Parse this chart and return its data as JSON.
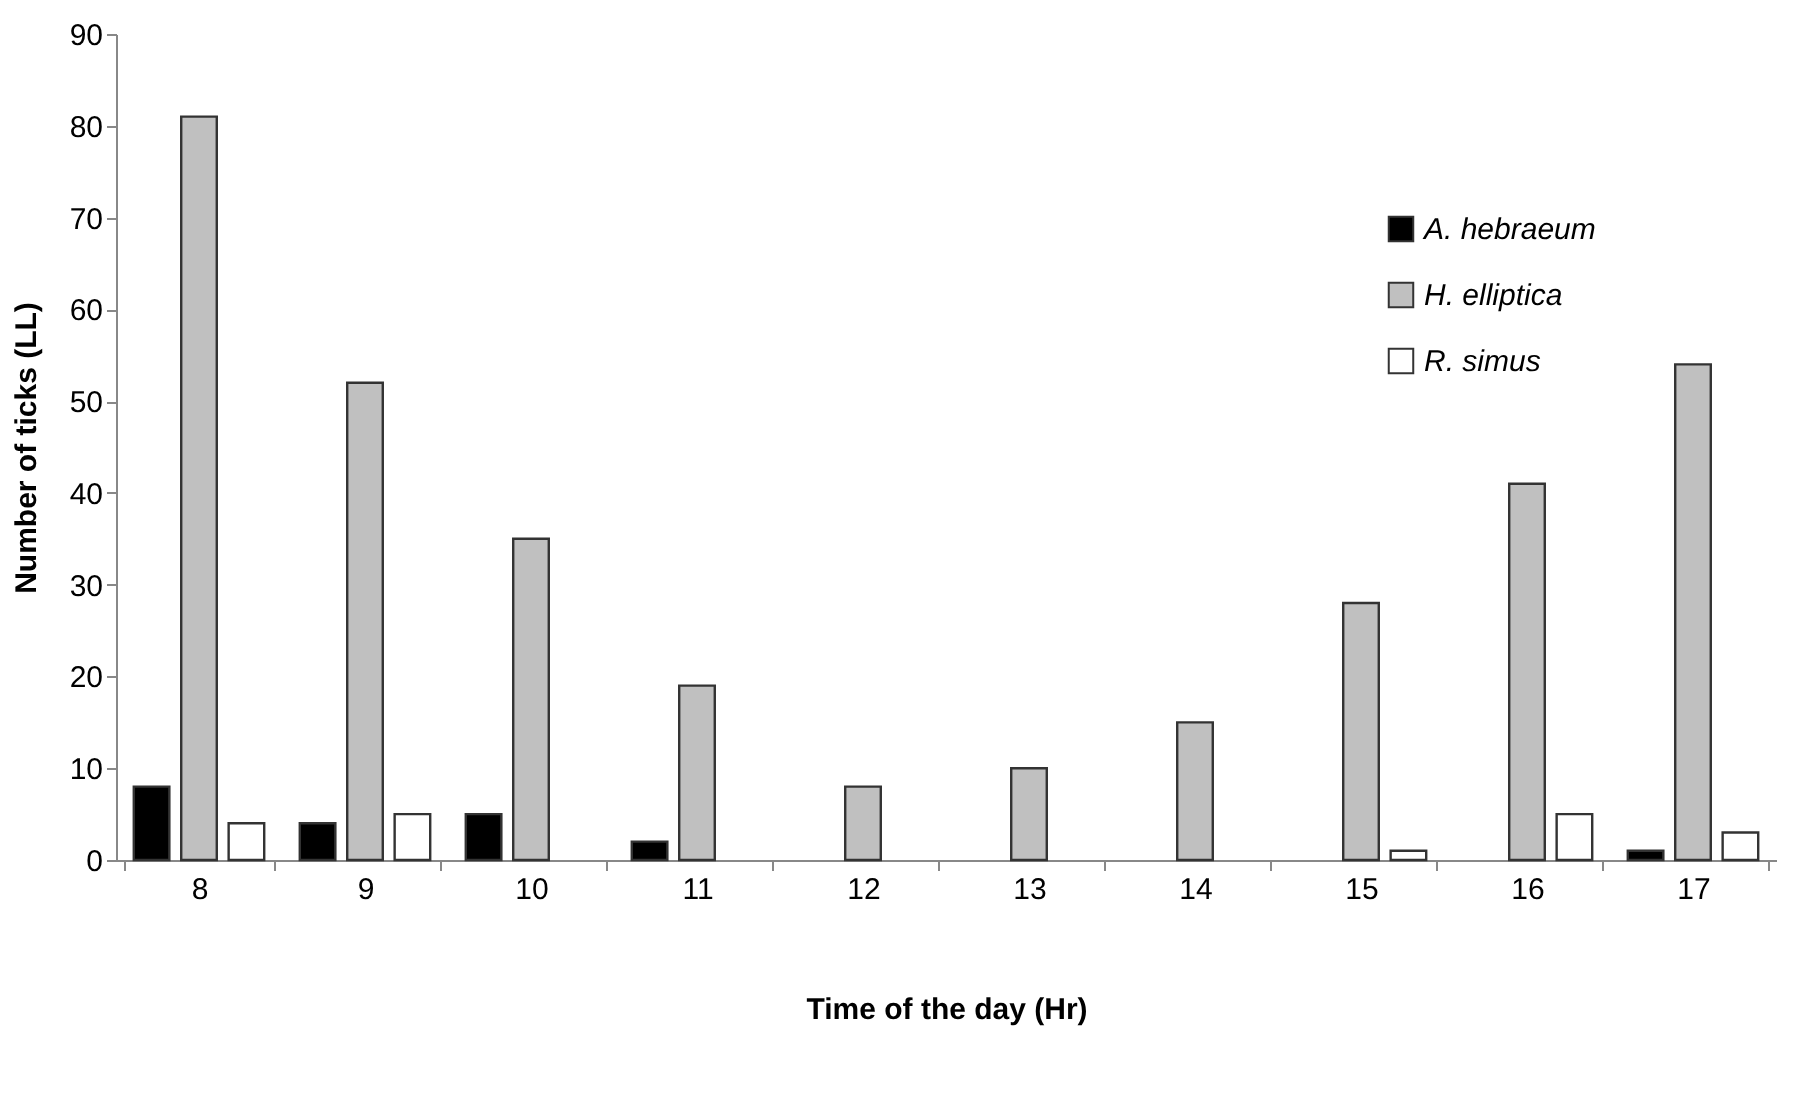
{
  "chart_data": {
    "type": "bar",
    "xlabel": "Time of the day (Hr)",
    "ylabel": "Number of ticks (LL)",
    "categories": [
      "8",
      "9",
      "10",
      "11",
      "12",
      "13",
      "14",
      "15",
      "16",
      "17"
    ],
    "series": [
      {
        "name": "A. hebraeum",
        "color": "#000000",
        "values": [
          8,
          4,
          5,
          2,
          null,
          null,
          null,
          null,
          null,
          1
        ]
      },
      {
        "name": "H. elliptica",
        "color": "#c0c0c0",
        "values": [
          81,
          52,
          35,
          19,
          8,
          10,
          15,
          28,
          41,
          54
        ]
      },
      {
        "name": "R. simus",
        "color": "#ffffff",
        "values": [
          4,
          5,
          null,
          null,
          null,
          null,
          null,
          1,
          5,
          3
        ]
      }
    ],
    "ylim": [
      0,
      90
    ],
    "yticks": [
      0,
      10,
      20,
      30,
      40,
      50,
      60,
      70,
      80,
      90
    ],
    "grid": false,
    "legend": "top right"
  }
}
